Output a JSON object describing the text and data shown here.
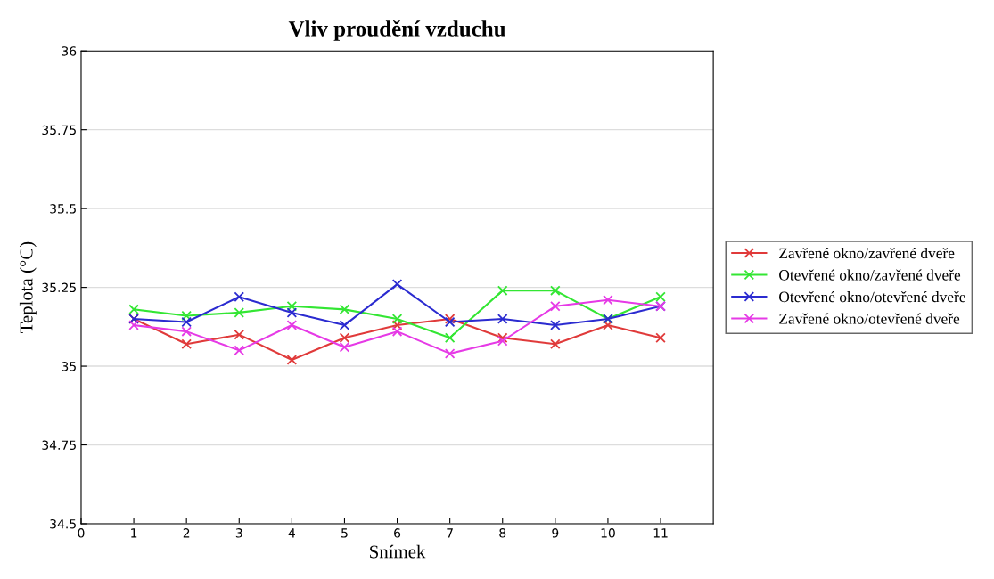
{
  "chart_data": {
    "type": "line",
    "title": "Vliv proudění vzduchu",
    "xlabel": "Snímek",
    "ylabel": "Teplota (°C)",
    "x": [
      1,
      2,
      3,
      4,
      5,
      6,
      7,
      8,
      9,
      10,
      11
    ],
    "xlim": [
      0,
      12
    ],
    "xticks": [
      0,
      1,
      2,
      3,
      4,
      5,
      6,
      7,
      8,
      9,
      10,
      11
    ],
    "ylim": [
      34.5,
      36
    ],
    "yticks": [
      34.5,
      34.75,
      35,
      35.25,
      35.5,
      35.75,
      36
    ],
    "grid": "y",
    "legend": "right",
    "marker": "cross",
    "line_style": "solid",
    "series": [
      {
        "name": "Zavřené okno/zavřené dveře",
        "color": "#e03a3a",
        "values": [
          35.15,
          35.07,
          35.1,
          35.02,
          35.09,
          35.13,
          35.15,
          35.09,
          35.07,
          35.13,
          35.09
        ]
      },
      {
        "name": "Otevřené okno/zavřené dveře",
        "color": "#33e633",
        "values": [
          35.18,
          35.16,
          35.17,
          35.19,
          35.18,
          35.15,
          35.09,
          35.24,
          35.24,
          35.15,
          35.22
        ]
      },
      {
        "name": "Otevřené okno/otevřené dveře",
        "color": "#2b2bd0",
        "values": [
          35.15,
          35.14,
          35.22,
          35.17,
          35.13,
          35.26,
          35.14,
          35.15,
          35.13,
          35.15,
          35.19
        ]
      },
      {
        "name": "Zavřené okno/otevřené dveře",
        "color": "#e63ae6",
        "values": [
          35.13,
          35.11,
          35.05,
          35.13,
          35.06,
          35.11,
          35.04,
          35.08,
          35.19,
          35.21,
          35.19
        ]
      }
    ]
  }
}
